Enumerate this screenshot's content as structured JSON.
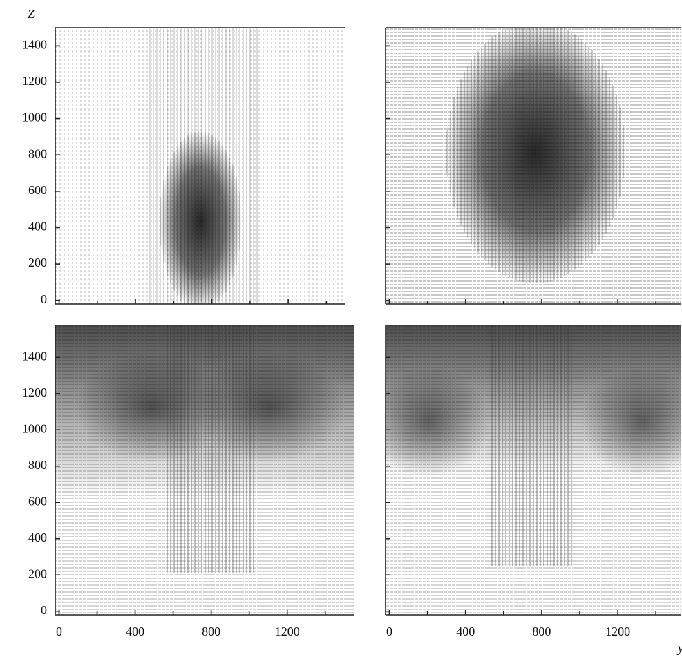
{
  "chart_data": [
    {
      "type": "vector_field",
      "ylabel": "Z",
      "xlim": [
        -20,
        1500
      ],
      "ylim": [
        -20,
        1500
      ],
      "xticks": [
        0,
        400,
        800,
        1200
      ],
      "minor_xticks": [
        200,
        600,
        1000,
        1400
      ],
      "yticks": [
        0,
        200,
        400,
        600,
        800,
        1000,
        1200,
        1400
      ],
      "xtick_labels": false,
      "ytick_labels": true,
      "frame_top": true
    },
    {
      "type": "vector_field",
      "xlim": [
        -20,
        1530
      ],
      "ylim": [
        -20,
        1500
      ],
      "xticks": [
        0,
        400,
        800,
        1200
      ],
      "minor_xticks": [
        200,
        600,
        1000,
        1400
      ],
      "yticks": [
        0,
        200,
        400,
        600,
        800,
        1000,
        1200,
        1400
      ],
      "xtick_labels": false,
      "ytick_labels": false,
      "frame_top": true
    },
    {
      "type": "vector_field",
      "xlim": [
        -20,
        1550
      ],
      "ylim": [
        -20,
        1580
      ],
      "xticks": [
        0,
        400,
        800,
        1200
      ],
      "minor_xticks": [
        200,
        600,
        1000,
        1400
      ],
      "yticks": [
        0,
        200,
        400,
        600,
        800,
        1000,
        1200,
        1400
      ],
      "xtick_labels": true,
      "ytick_labels": true,
      "frame_top": false
    },
    {
      "type": "vector_field",
      "xlabel": "y",
      "xlim": [
        -20,
        1530
      ],
      "ylim": [
        -20,
        1580
      ],
      "xticks": [
        0,
        400,
        800,
        1200
      ],
      "minor_xticks": [
        200,
        600,
        1000,
        1400
      ],
      "yticks": [
        0,
        200,
        400,
        600,
        800,
        1000,
        1200,
        1400
      ],
      "xtick_labels": true,
      "ytick_labels": false,
      "frame_top": false
    }
  ]
}
